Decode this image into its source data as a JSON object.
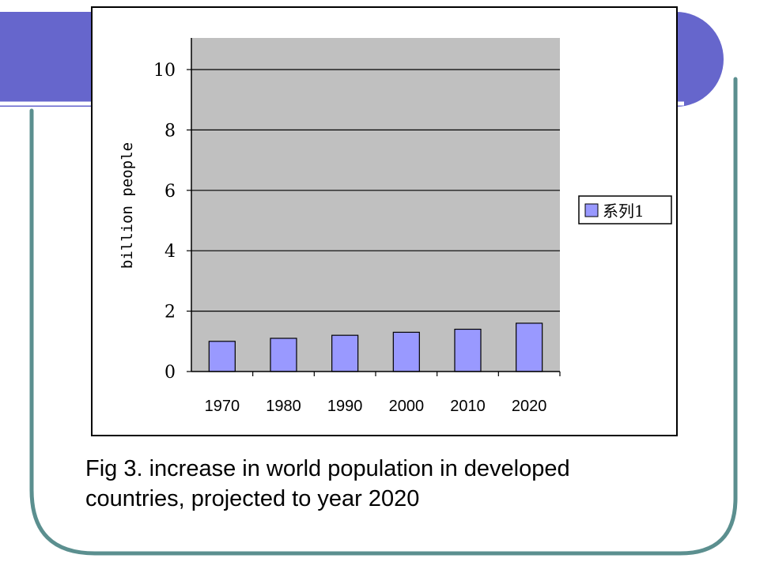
{
  "slide": {
    "caption_line1": "Fig 3. increase in world population in developed",
    "caption_line2": "countries, projected to year 2020",
    "colors": {
      "band": "#6666cc",
      "border": "#5b8f8f",
      "rule": "#ffffff"
    }
  },
  "chart_data": {
    "type": "bar",
    "title": "",
    "xlabel": "",
    "ylabel": "billion people",
    "categories": [
      "1970",
      "1980",
      "1990",
      "2000",
      "2010",
      "2020"
    ],
    "series": [
      {
        "name": "系列1",
        "values": [
          1.0,
          1.1,
          1.2,
          1.3,
          1.4,
          1.6
        ]
      }
    ],
    "ylim": [
      0,
      10
    ],
    "yticks": [
      0,
      2,
      4,
      6,
      8,
      10
    ],
    "grid": true,
    "legend": "right",
    "colors": {
      "plot_bg": "#c0c0c0",
      "bar_fill": "#9999ff",
      "bar_stroke": "#000000"
    }
  }
}
